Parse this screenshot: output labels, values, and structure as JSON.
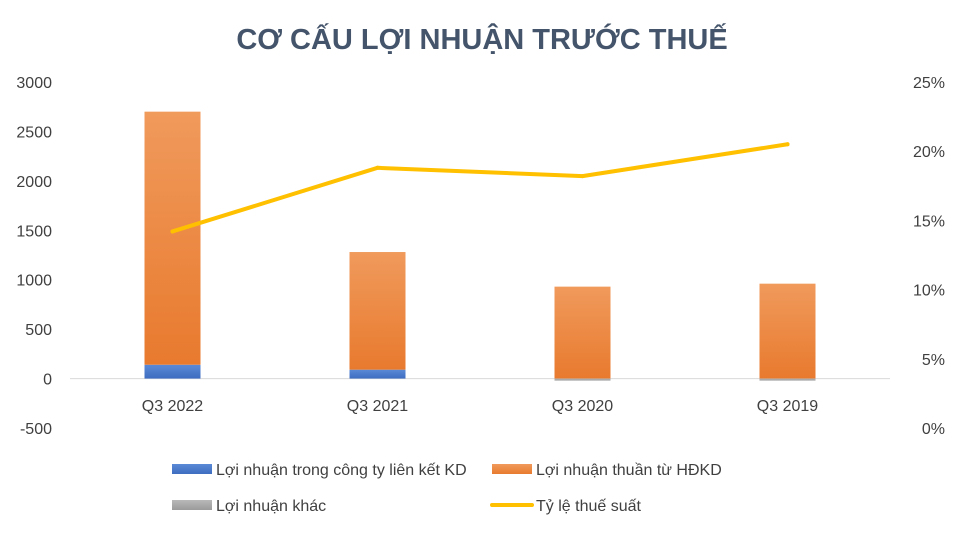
{
  "chart_data": {
    "type": "bar",
    "title": "CƠ CẤU LỢI NHUẬN TRƯỚC THUẾ",
    "categories": [
      "Q3 2022",
      "Q3 2021",
      "Q3 2020",
      "Q3 2019"
    ],
    "stacked": true,
    "series": [
      {
        "name": "Lợi nhuận trong công ty liên kết KD",
        "type": "bar",
        "axis": "left",
        "color": "#4472c4",
        "values": [
          140,
          90,
          0,
          0
        ]
      },
      {
        "name": "Lợi nhuận thuần từ HĐKD",
        "type": "bar",
        "axis": "left",
        "color": "#ed7d31",
        "values": [
          2560,
          1190,
          930,
          960
        ]
      },
      {
        "name": "Lợi nhuận khác",
        "type": "bar",
        "axis": "left",
        "color": "#a5a5a5",
        "values": [
          0,
          0,
          -20,
          -15
        ]
      },
      {
        "name": "Tỷ lệ thuế suất",
        "type": "line",
        "axis": "right",
        "color": "#ffc000",
        "values": [
          14.2,
          18.8,
          18.2,
          20.5
        ]
      }
    ],
    "y_left": {
      "min": -500,
      "max": 3000,
      "ticks": [
        "3000",
        "2500",
        "2000",
        "1500",
        "1000",
        "500",
        "0",
        "-500"
      ]
    },
    "y_right": {
      "min": 0,
      "max": 25,
      "ticks": [
        "25%",
        "20%",
        "15%",
        "10%",
        "5%",
        "0%"
      ]
    },
    "grid": false,
    "legend_position": "bottom"
  }
}
